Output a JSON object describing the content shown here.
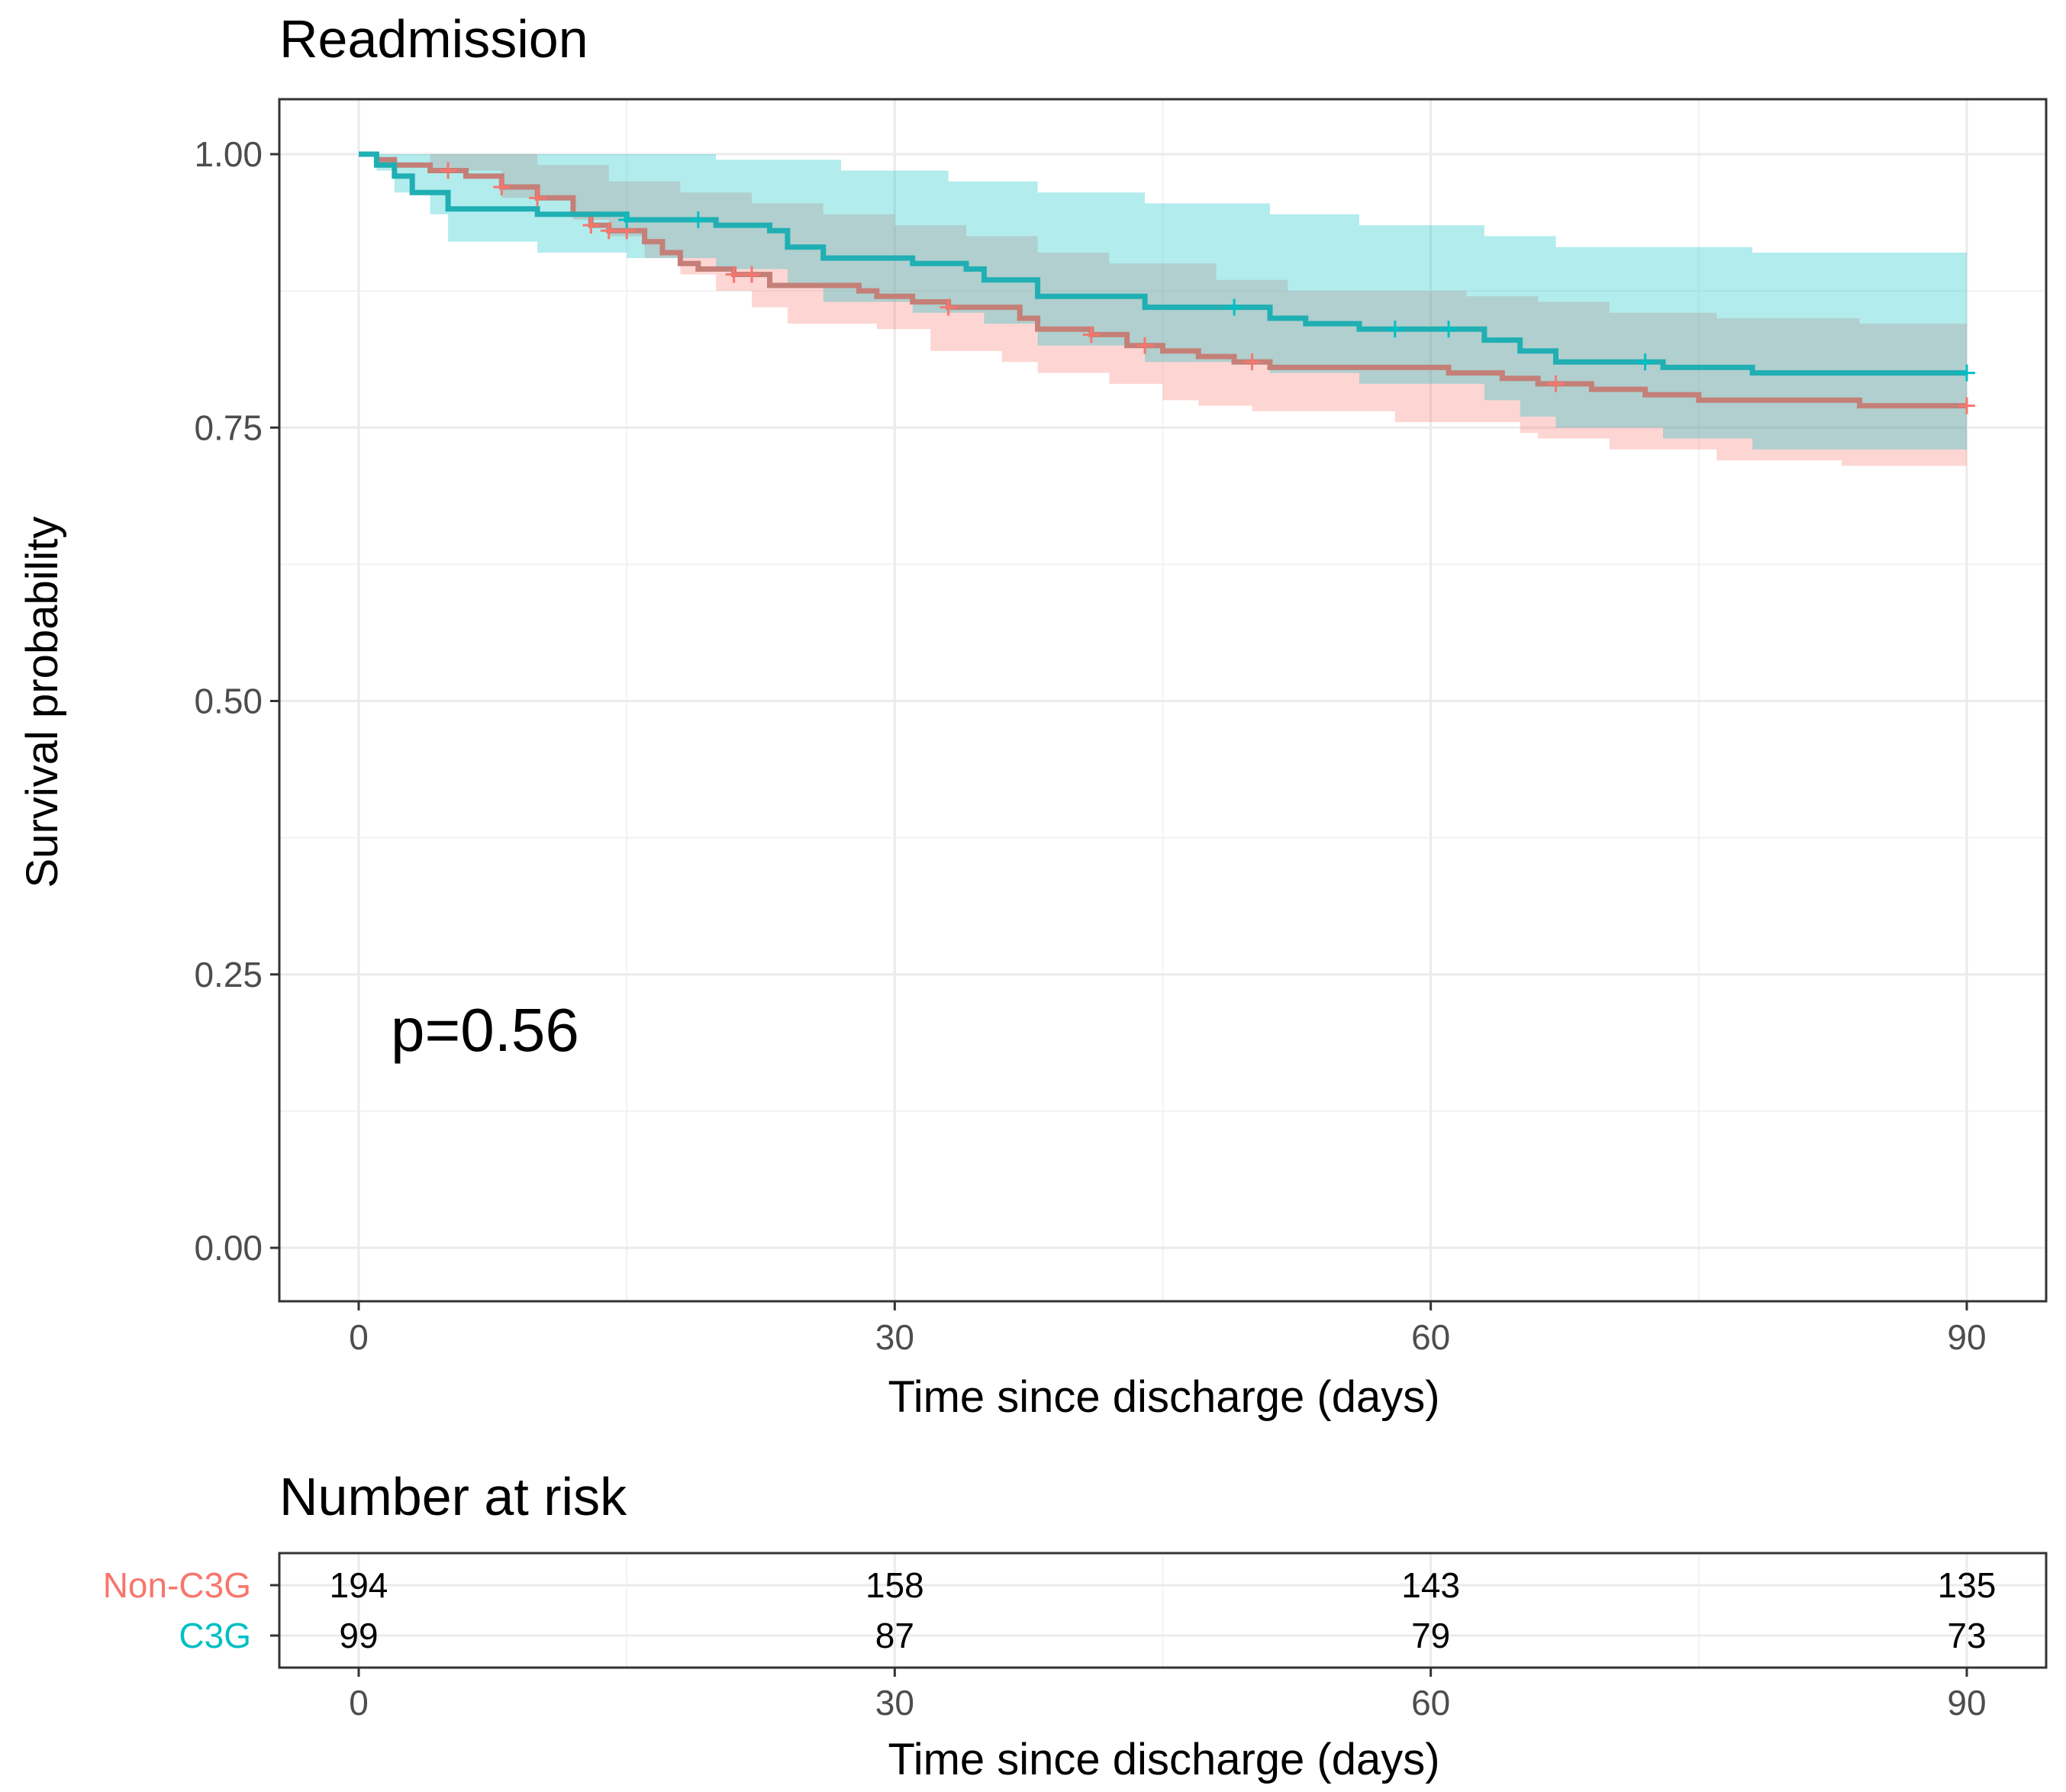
{
  "chart_data": [
    {
      "type": "line",
      "subtype": "kaplan-meier step curve with confidence bands",
      "title": "Readmission",
      "xlabel": "Time since discharge (days)",
      "ylabel": "Survival probability",
      "xlim": [
        0,
        90
      ],
      "ylim": [
        0,
        1
      ],
      "x_ticks": [
        0,
        30,
        60,
        90
      ],
      "x_tick_labels": [
        "0",
        "30",
        "60",
        "90"
      ],
      "y_ticks": [
        0,
        0.25,
        0.5,
        0.75,
        1
      ],
      "y_tick_labels": [
        "0.00",
        "0.25",
        "0.50",
        "0.75",
        "1.00"
      ],
      "grid": true,
      "annotation": "p=0.56",
      "series": [
        {
          "name": "Non-C3G",
          "color": "#F8766D",
          "steps": [
            [
              0,
              1.0
            ],
            [
              1,
              0.995
            ],
            [
              2,
              0.99
            ],
            [
              4,
              0.985
            ],
            [
              6,
              0.98
            ],
            [
              8,
              0.97
            ],
            [
              10,
              0.96
            ],
            [
              12,
              0.945
            ],
            [
              13,
              0.935
            ],
            [
              14,
              0.93
            ],
            [
              16,
              0.92
            ],
            [
              17,
              0.91
            ],
            [
              18,
              0.9
            ],
            [
              19,
              0.895
            ],
            [
              21,
              0.89
            ],
            [
              23,
              0.88
            ],
            [
              28,
              0.875
            ],
            [
              29,
              0.87
            ],
            [
              31,
              0.865
            ],
            [
              33,
              0.86
            ],
            [
              37,
              0.85
            ],
            [
              38,
              0.84
            ],
            [
              41,
              0.835
            ],
            [
              43,
              0.825
            ],
            [
              45,
              0.82
            ],
            [
              47,
              0.815
            ],
            [
              49,
              0.81
            ],
            [
              51,
              0.805
            ],
            [
              61,
              0.8
            ],
            [
              64,
              0.795
            ],
            [
              66,
              0.79
            ],
            [
              69,
              0.785
            ],
            [
              72,
              0.78
            ],
            [
              75,
              0.775
            ],
            [
              84,
              0.77
            ],
            [
              90,
              0.77
            ]
          ],
          "ci_upper": [
            [
              0,
              1.0
            ],
            [
              6,
              1.0
            ],
            [
              10,
              0.99
            ],
            [
              14,
              0.975
            ],
            [
              18,
              0.965
            ],
            [
              22,
              0.955
            ],
            [
              26,
              0.945
            ],
            [
              30,
              0.935
            ],
            [
              34,
              0.925
            ],
            [
              38,
              0.91
            ],
            [
              42,
              0.9
            ],
            [
              48,
              0.885
            ],
            [
              52,
              0.875
            ],
            [
              62,
              0.87
            ],
            [
              66,
              0.865
            ],
            [
              70,
              0.855
            ],
            [
              76,
              0.85
            ],
            [
              84,
              0.845
            ],
            [
              90,
              0.845
            ]
          ],
          "ci_lower": [
            [
              0,
              1.0
            ],
            [
              4,
              0.985
            ],
            [
              8,
              0.96
            ],
            [
              12,
              0.94
            ],
            [
              14,
              0.925
            ],
            [
              16,
              0.905
            ],
            [
              18,
              0.89
            ],
            [
              20,
              0.875
            ],
            [
              22,
              0.86
            ],
            [
              24,
              0.845
            ],
            [
              29,
              0.84
            ],
            [
              32,
              0.82
            ],
            [
              36,
              0.81
            ],
            [
              38,
              0.8
            ],
            [
              42,
              0.79
            ],
            [
              45,
              0.775
            ],
            [
              47,
              0.77
            ],
            [
              50,
              0.765
            ],
            [
              58,
              0.755
            ],
            [
              65,
              0.745
            ],
            [
              66,
              0.74
            ],
            [
              70,
              0.73
            ],
            [
              76,
              0.72
            ],
            [
              83,
              0.715
            ],
            [
              90,
              0.715
            ]
          ],
          "censor_times": [
            5,
            8,
            10,
            13,
            14,
            15,
            21,
            22,
            33,
            41,
            44,
            50,
            67,
            90
          ]
        },
        {
          "name": "C3G",
          "color": "#00BFC4",
          "steps": [
            [
              0,
              1.0
            ],
            [
              1,
              0.99
            ],
            [
              2,
              0.98
            ],
            [
              3,
              0.965
            ],
            [
              5,
              0.95
            ],
            [
              10,
              0.945
            ],
            [
              15,
              0.94
            ],
            [
              20,
              0.935
            ],
            [
              23,
              0.93
            ],
            [
              24,
              0.915
            ],
            [
              26,
              0.905
            ],
            [
              31,
              0.9
            ],
            [
              34,
              0.895
            ],
            [
              35,
              0.885
            ],
            [
              38,
              0.87
            ],
            [
              44,
              0.86
            ],
            [
              51,
              0.85
            ],
            [
              53,
              0.845
            ],
            [
              56,
              0.84
            ],
            [
              63,
              0.83
            ],
            [
              65,
              0.82
            ],
            [
              67,
              0.81
            ],
            [
              73,
              0.805
            ],
            [
              78,
              0.8
            ],
            [
              90,
              0.8
            ]
          ],
          "ci_upper": [
            [
              0,
              1.0
            ],
            [
              13,
              1.0
            ],
            [
              20,
              0.995
            ],
            [
              27,
              0.985
            ],
            [
              33,
              0.975
            ],
            [
              38,
              0.965
            ],
            [
              44,
              0.955
            ],
            [
              51,
              0.945
            ],
            [
              56,
              0.935
            ],
            [
              63,
              0.925
            ],
            [
              67,
              0.915
            ],
            [
              78,
              0.91
            ],
            [
              90,
              0.91
            ]
          ],
          "ci_lower": [
            [
              0,
              1.0
            ],
            [
              1,
              0.985
            ],
            [
              2,
              0.965
            ],
            [
              4,
              0.945
            ],
            [
              5,
              0.92
            ],
            [
              10,
              0.91
            ],
            [
              15,
              0.905
            ],
            [
              20,
              0.895
            ],
            [
              24,
              0.88
            ],
            [
              26,
              0.865
            ],
            [
              31,
              0.855
            ],
            [
              35,
              0.845
            ],
            [
              38,
              0.825
            ],
            [
              44,
              0.81
            ],
            [
              51,
              0.8
            ],
            [
              56,
              0.79
            ],
            [
              63,
              0.775
            ],
            [
              65,
              0.76
            ],
            [
              67,
              0.75
            ],
            [
              73,
              0.74
            ],
            [
              78,
              0.73
            ],
            [
              90,
              0.73
            ]
          ],
          "censor_times": [
            15,
            19,
            49,
            58,
            61,
            72,
            90
          ]
        }
      ]
    },
    {
      "type": "table",
      "title": "Number at risk",
      "xlabel": "Time since discharge (days)",
      "xlim": [
        0,
        90
      ],
      "x_ticks": [
        0,
        30,
        60,
        90
      ],
      "x_tick_labels": [
        "0",
        "30",
        "60",
        "90"
      ],
      "rows": [
        {
          "name": "Non-C3G",
          "color": "#F8766D",
          "values": [
            "194",
            "158",
            "143",
            "135"
          ]
        },
        {
          "name": "C3G",
          "color": "#00BFC4",
          "values": [
            "99",
            "87",
            "79",
            "73"
          ]
        }
      ]
    }
  ]
}
